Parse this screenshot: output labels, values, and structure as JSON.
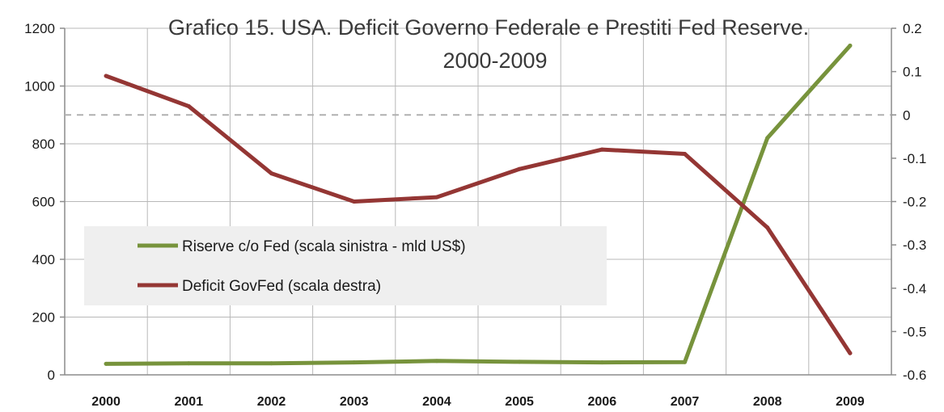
{
  "chart_data": {
    "type": "line",
    "title_lines": [
      "Grafico 15. USA.  Deficit Governo Federale e Prestiti Fed Reserve.",
      "2000-2009"
    ],
    "categories": [
      "2000",
      "2001",
      "2002",
      "2003",
      "2004",
      "2005",
      "2006",
      "2007",
      "2008",
      "2009"
    ],
    "y_left": {
      "range": [
        0,
        1200
      ],
      "ticks": [
        0,
        200,
        400,
        600,
        800,
        1000,
        1200
      ],
      "tick_labels": [
        "0",
        "200",
        "400",
        "600",
        "800",
        "1000",
        "1200"
      ]
    },
    "y_right": {
      "range": [
        -0.6,
        0.2
      ],
      "ticks": [
        -0.6,
        -0.5,
        -0.4,
        -0.3,
        -0.2,
        -0.1,
        0,
        0.1,
        0.2
      ],
      "tick_labels": [
        "-0.6",
        "-0.5",
        "-0.4",
        "-0.3",
        "-0.2",
        "-0.1",
        "0",
        "0.1",
        "0.2"
      ]
    },
    "series": [
      {
        "name": "Riserve c/o Fed (scala sinistra - mld US$)",
        "axis": "left",
        "color": "#77933c",
        "values": [
          38,
          40,
          40,
          43,
          48,
          45,
          43,
          44,
          820,
          1140
        ]
      },
      {
        "name": "Deficit GovFed (scala destra)",
        "axis": "right",
        "color": "#943634",
        "values": [
          0.09,
          0.02,
          -0.135,
          -0.2,
          -0.19,
          -0.125,
          -0.08,
          -0.09,
          -0.26,
          -0.55
        ]
      }
    ],
    "reference_line": {
      "axis": "right",
      "value": 0,
      "style": "dashed",
      "color": "#b0b0b0"
    },
    "grid": true,
    "legend": "inside-left",
    "gridline_color": "#b8b8b8",
    "legend_background": "#efefef"
  }
}
